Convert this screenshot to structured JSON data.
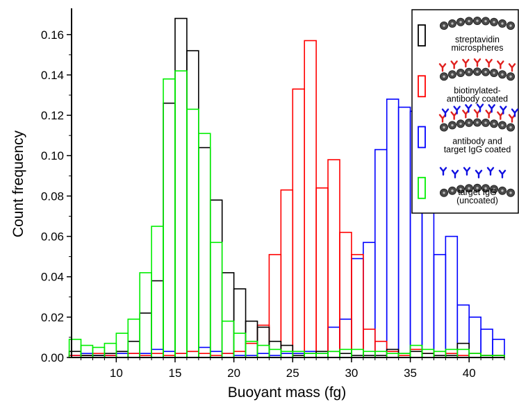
{
  "chart_data": {
    "type": "bar",
    "title": "",
    "xlabel": "Buoyant mass (fg)",
    "ylabel": "Count frequency",
    "xlim": [
      6.2,
      43.0
    ],
    "ylim": [
      0.0,
      0.173
    ],
    "grid": false,
    "legend_position": "top-right",
    "bin_width": 1.0,
    "x": [
      6.5,
      7.5,
      8.5,
      9.5,
      10.5,
      11.5,
      12.5,
      13.5,
      14.5,
      15.5,
      16.5,
      17.5,
      18.5,
      19.5,
      20.5,
      21.5,
      22.5,
      23.5,
      24.5,
      25.5,
      26.5,
      27.5,
      28.5,
      29.5,
      30.5,
      31.5,
      32.5,
      33.5,
      34.5,
      35.5,
      36.5,
      37.5,
      38.5,
      39.5,
      40.5,
      41.5,
      42.5
    ],
    "xticks": [
      "10",
      "15",
      "20",
      "25",
      "30",
      "35",
      "40"
    ],
    "yticks": [
      "0.00",
      "0.02",
      "0.04",
      "0.06",
      "0.08",
      "0.10",
      "0.12",
      "0.14",
      "0.16"
    ],
    "series": [
      {
        "name": "streptavidin microspheres",
        "color": "#000000",
        "values": [
          0.003,
          0.001,
          0.001,
          0.002,
          0.003,
          0.008,
          0.022,
          0.038,
          0.126,
          0.168,
          0.152,
          0.104,
          0.078,
          0.042,
          0.034,
          0.018,
          0.015,
          0.008,
          0.006,
          0.001,
          0.002,
          0.003,
          0.003,
          0.002,
          0.001,
          0.001,
          0.001,
          0.004,
          0.002,
          0.003,
          0.002,
          0.001,
          0.001,
          0.007,
          0.002,
          0.001,
          0.001
        ]
      },
      {
        "name": "biotinylated-antibody coated",
        "color": "#ff0000",
        "values": [
          0.001,
          0.001,
          0.002,
          0.001,
          0.003,
          0.002,
          0.001,
          0.002,
          0.001,
          0.002,
          0.003,
          0.002,
          0.001,
          0.002,
          0.003,
          0.007,
          0.016,
          0.051,
          0.083,
          0.133,
          0.157,
          0.084,
          0.098,
          0.062,
          0.051,
          0.014,
          0.008,
          0.003,
          0.001,
          0.004,
          0.002,
          0.003,
          0.002,
          0.001,
          0.002,
          0.001,
          0.001
        ]
      },
      {
        "name": "antibody and target IgG coated",
        "color": "#0000ff",
        "values": [
          0.001,
          0.002,
          0.001,
          0.001,
          0.002,
          0.002,
          0.002,
          0.004,
          0.003,
          0.002,
          0.003,
          0.005,
          0.003,
          0.002,
          0.001,
          0.001,
          0.002,
          0.001,
          0.002,
          0.002,
          0.003,
          0.002,
          0.015,
          0.019,
          0.049,
          0.057,
          0.103,
          0.128,
          0.124,
          0.122,
          0.097,
          0.051,
          0.06,
          0.026,
          0.02,
          0.014,
          0.009
        ]
      },
      {
        "name": "target IgG (uncoated)",
        "color": "#00ee00",
        "values": [
          0.009,
          0.006,
          0.005,
          0.007,
          0.012,
          0.019,
          0.042,
          0.065,
          0.138,
          0.142,
          0.123,
          0.111,
          0.057,
          0.018,
          0.012,
          0.008,
          0.006,
          0.004,
          0.003,
          0.003,
          0.002,
          0.002,
          0.003,
          0.004,
          0.004,
          0.003,
          0.003,
          0.002,
          0.002,
          0.006,
          0.004,
          0.003,
          0.004,
          0.004,
          0.002,
          0.001,
          0.001
        ]
      }
    ],
    "legend": {
      "entries": [
        {
          "label_lines": [
            "streptavidin",
            "microspheres"
          ],
          "color": "#000000",
          "series": 0,
          "ligands": [],
          "illustration": "streptavidin-microsphere-icon"
        },
        {
          "label_lines": [
            "biotinylated-",
            "antibody coated"
          ],
          "color": "#ff0000",
          "series": 1,
          "ligands": [
            "#e0201e"
          ],
          "illustration": "antibody-coated-microsphere-icon"
        },
        {
          "label_lines": [
            "antibody and",
            "target IgG coated"
          ],
          "color": "#0000ff",
          "series": 2,
          "ligands": [
            "#e0201e",
            "#1010e0"
          ],
          "illustration": "igg-coated-microsphere-icon"
        },
        {
          "label_lines": [
            "target IgG",
            "(uncoated)"
          ],
          "color": "#00ee00",
          "series": 3,
          "ligands": [
            "#1010e0"
          ],
          "illustration": "uncoated-igg-microsphere-icon"
        }
      ]
    }
  }
}
